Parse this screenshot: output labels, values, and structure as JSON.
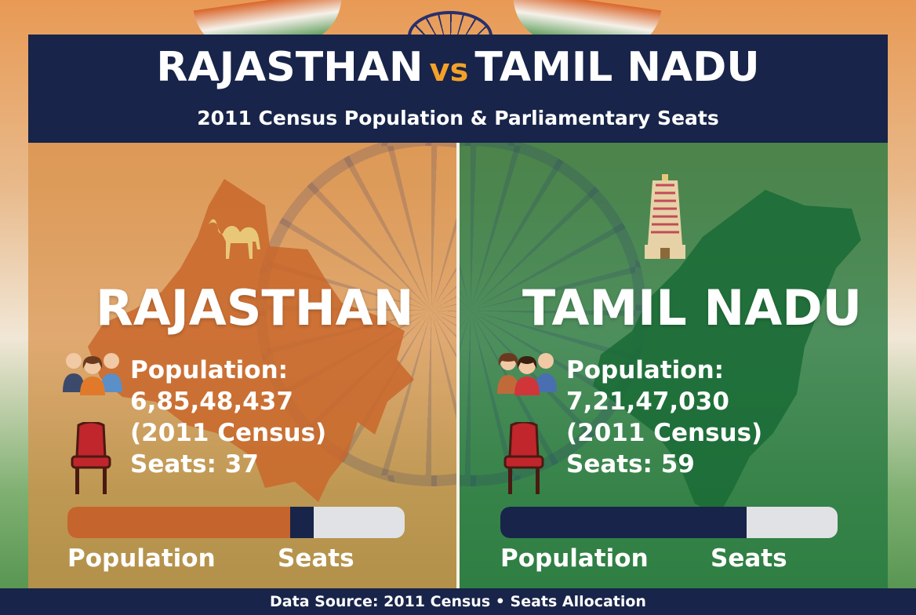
{
  "header": {
    "title_left": "RAJASTHAN",
    "title_vs": "vs",
    "title_right": "TAMIL NADU",
    "subtitle": "2011 Census Population & Parliamentary Seats"
  },
  "left": {
    "state": "RAJASTHAN",
    "population_line": "Population: 6,85,48,437",
    "census_line": "(2011 Census)",
    "seats_line": "Seats: 37",
    "bar_population_fraction": 0.66,
    "bar_seats_fraction": 0.07,
    "bar_label_population": "Population",
    "bar_label_seats": "Seats",
    "icons": [
      "camel-icon",
      "people-icon",
      "chair-icon",
      "rajasthan-map"
    ]
  },
  "right": {
    "state": "TAMIL NADU",
    "population_line": "Population: 7,21,47,030",
    "census_line": "(2011 Census)",
    "seats_line": "Seats: 59",
    "bar_seats_fraction": 0.73,
    "bar_label_population": "Population",
    "bar_label_seats": "Seats",
    "icons": [
      "temple-icon",
      "people-icon",
      "chair-icon",
      "tamil-nadu-map"
    ]
  },
  "footer": {
    "text": "Data Source: 2011 Census • Seats Allocation"
  },
  "colors": {
    "navy": "#182449",
    "saffron": "#d9652a",
    "green": "#24783f",
    "accent_vs": "#f3a12b",
    "bar_bg": "#e1e2e6"
  }
}
